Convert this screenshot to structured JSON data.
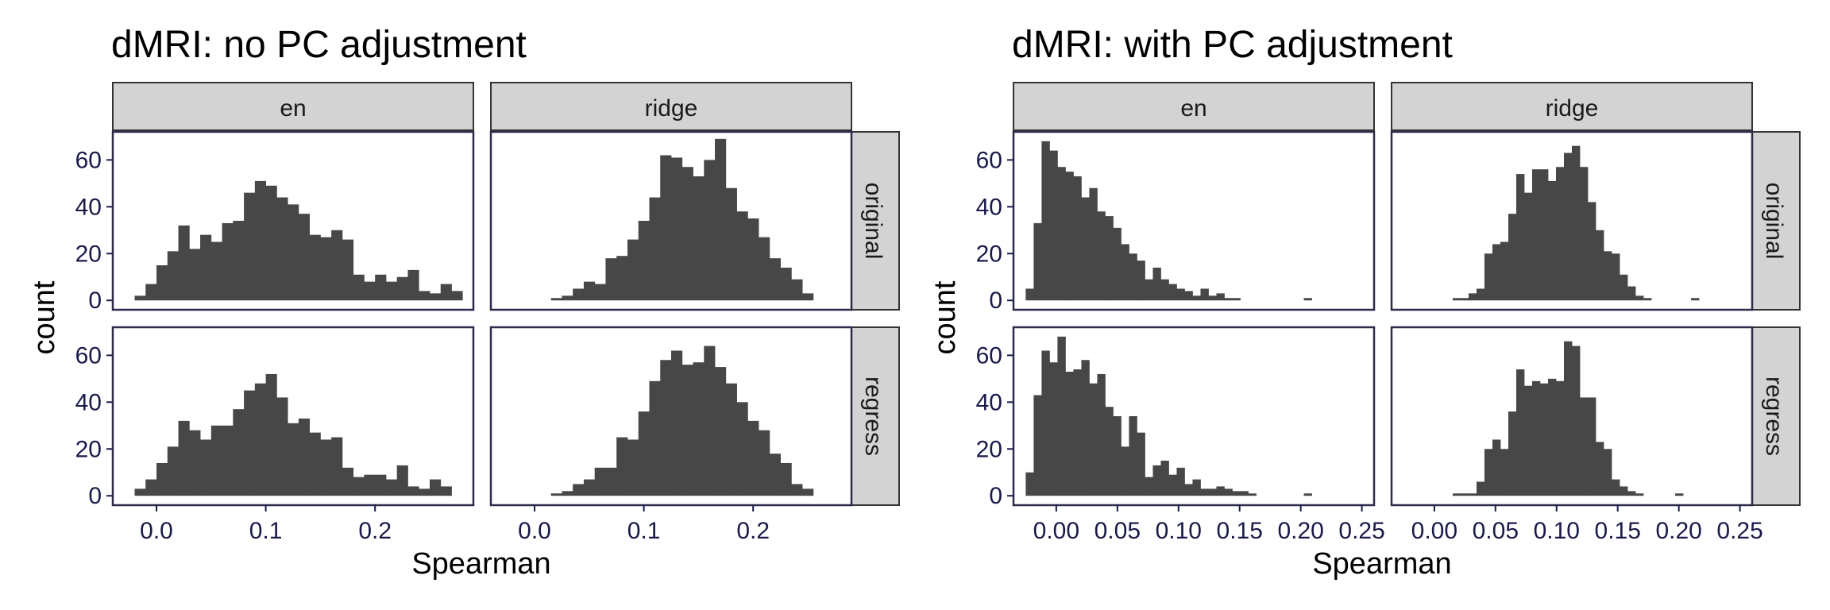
{
  "chart_data": [
    {
      "type": "bar",
      "title": "dMRI: no PC adjustment",
      "xlabel": "Spearman",
      "ylabel": "count",
      "facet_columns": [
        "en",
        "ridge"
      ],
      "facet_rows": [
        "original",
        "regress"
      ],
      "ylim": [
        -4,
        72
      ],
      "y_ticks": [
        0,
        20,
        40,
        60
      ],
      "grid": false,
      "panels": {
        "en": {
          "xlim": [
            -0.04,
            0.29
          ],
          "x_ticks": [
            0.0,
            0.1,
            0.2
          ],
          "x_tick_labels": [
            "0.0",
            "0.1",
            "0.2"
          ],
          "bin_start": -0.02,
          "bin_width": 0.01,
          "original": [
            2,
            7,
            15,
            21,
            32,
            22,
            28,
            25,
            33,
            34,
            46,
            51,
            49,
            44,
            41,
            37,
            28,
            27,
            30,
            26,
            11,
            8,
            11,
            8,
            10,
            13,
            4,
            3,
            7,
            4
          ],
          "regress": [
            3,
            7,
            14,
            21,
            32,
            28,
            24,
            30,
            30,
            37,
            45,
            48,
            52,
            42,
            31,
            33,
            27,
            24,
            25,
            12,
            8,
            9,
            9,
            7,
            13,
            4,
            3,
            7,
            4
          ]
        },
        "ridge": {
          "xlim": [
            -0.04,
            0.29
          ],
          "x_ticks": [
            0.0,
            0.1,
            0.2
          ],
          "x_tick_labels": [
            "0.0",
            "0.1",
            "0.2"
          ],
          "bin_start": 0.015,
          "bin_width": 0.01,
          "original": [
            1,
            2,
            5,
            8,
            7,
            18,
            19,
            26,
            34,
            44,
            62,
            61,
            57,
            53,
            60,
            69,
            48,
            38,
            35,
            27,
            18,
            14,
            9,
            3
          ],
          "regress": [
            1,
            2,
            5,
            7,
            12,
            12,
            25,
            24,
            36,
            49,
            58,
            62,
            56,
            57,
            64,
            55,
            48,
            40,
            32,
            28,
            18,
            14,
            5,
            3
          ]
        }
      }
    },
    {
      "type": "bar",
      "title": "dMRI: with PC adjustment",
      "xlabel": "Spearman",
      "ylabel": "count",
      "facet_columns": [
        "en",
        "ridge"
      ],
      "facet_rows": [
        "original",
        "regress"
      ],
      "ylim": [
        -4,
        72
      ],
      "y_ticks": [
        0,
        20,
        40,
        60
      ],
      "grid": false,
      "panels": {
        "en": {
          "xlim": [
            -0.035,
            0.26
          ],
          "x_ticks": [
            0.0,
            0.05,
            0.1,
            0.15,
            0.2,
            0.25
          ],
          "x_tick_labels": [
            "0.00",
            "0.05",
            "0.10",
            "0.15",
            "0.20",
            "0.25"
          ],
          "bin_start": -0.025,
          "bin_width": 0.0065,
          "original": [
            5,
            33,
            68,
            64,
            57,
            55,
            53,
            44,
            48,
            38,
            36,
            31,
            24,
            20,
            17,
            9,
            14,
            9,
            7,
            5,
            4,
            2,
            5,
            2,
            3,
            1,
            1,
            0,
            0,
            0,
            0,
            0,
            0,
            0,
            0,
            1
          ],
          "regress": [
            10,
            43,
            62,
            57,
            68,
            53,
            54,
            58,
            48,
            52,
            38,
            34,
            21,
            34,
            27,
            8,
            13,
            15,
            9,
            12,
            5,
            7,
            3,
            3,
            4,
            3,
            2,
            2,
            1,
            0,
            0,
            0,
            0,
            0,
            0,
            1
          ]
        },
        "ridge": {
          "xlim": [
            -0.035,
            0.26
          ],
          "x_ticks": [
            0.0,
            0.05,
            0.1,
            0.15,
            0.2,
            0.25
          ],
          "x_tick_labels": [
            "0.00",
            "0.05",
            "0.10",
            "0.15",
            "0.20",
            "0.25"
          ],
          "bin_start": 0.015,
          "bin_width": 0.0065,
          "original": [
            1,
            1,
            3,
            5,
            20,
            24,
            25,
            37,
            54,
            46,
            56,
            56,
            51,
            57,
            63,
            66,
            57,
            42,
            30,
            21,
            20,
            11,
            6,
            2,
            1,
            0,
            0,
            0,
            0,
            0,
            1
          ],
          "regress": [
            1,
            1,
            1,
            6,
            20,
            24,
            20,
            36,
            54,
            47,
            49,
            48,
            50,
            49,
            66,
            64,
            42,
            42,
            23,
            20,
            7,
            4,
            2,
            1,
            0,
            0,
            0,
            0,
            1
          ]
        }
      }
    }
  ]
}
